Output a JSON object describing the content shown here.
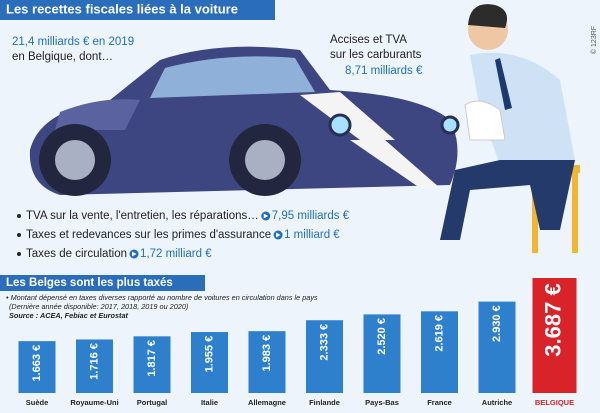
{
  "header": {
    "title": "Les recettes fiscales liées à la voiture",
    "credit": "© 123RF"
  },
  "total": {
    "amount": "21,4 milliards € en 2019",
    "text": "en Belgique, dont…"
  },
  "fuel": {
    "line1": "Accises et TVA",
    "line2": "sur les carburants",
    "amount": "8,71 milliards €"
  },
  "bullets": [
    {
      "text": "TVA sur la vente, l'entretien, les réparations…",
      "amount": "7,95 milliards €"
    },
    {
      "text": "Taxes  et redevances sur les primes d'assurance",
      "amount": "1 milliard €"
    },
    {
      "text": "Taxes de circulation",
      "amount": "1,72 milliard €"
    }
  ],
  "chart_data": {
    "type": "bar",
    "title": "Les Belges sont les plus taxés",
    "note": [
      "• Montant dépensé en taxes diverses rapporté au nombre de voitures en circulation dans le pays",
      "(Dernière année disponible: 2017, 2018, 2019 ou 2020)"
    ],
    "source": "Source : ACEA, Febiac et Eurostat",
    "categories": [
      "Suède",
      "Royaume-Uni",
      "Portugal",
      "Italie",
      "Allemagne",
      "Finlande",
      "Pays-Bas",
      "France",
      "Autriche",
      "BELGIQUE"
    ],
    "values": [
      1663,
      1716,
      1817,
      1955,
      1983,
      2333,
      2520,
      2619,
      2930,
      3687
    ],
    "value_labels": [
      "1.663 €",
      "1.716 €",
      "1.817 €",
      "1.955 €",
      "1.983 €",
      "2.333 €",
      "2.520 €",
      "2.619 €",
      "2.930 €",
      "3.687 €"
    ],
    "colors": [
      "#2f80cc",
      "#2f80cc",
      "#2f80cc",
      "#2f80cc",
      "#2f80cc",
      "#2f80cc",
      "#2f80cc",
      "#2f80cc",
      "#2f80cc",
      "#d8232a"
    ]
  }
}
